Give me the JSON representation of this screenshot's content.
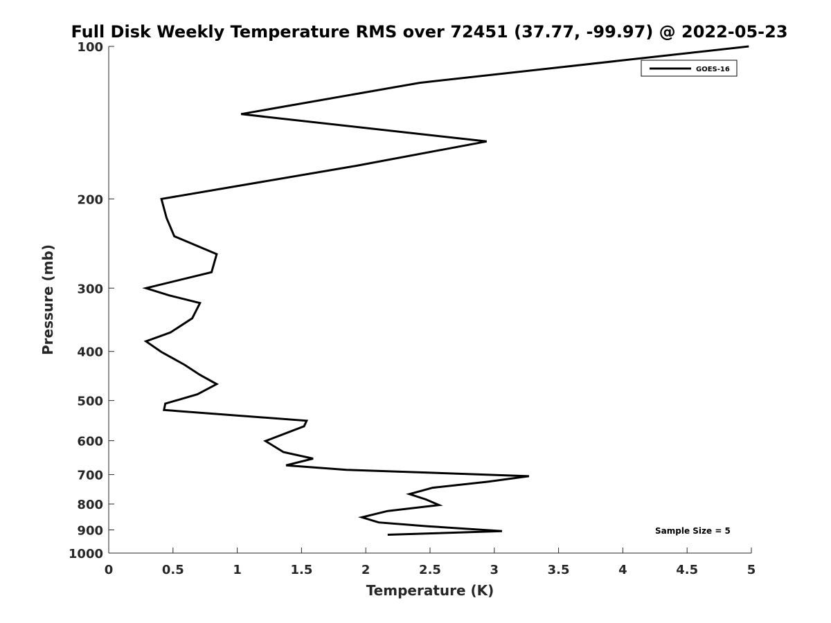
{
  "chart_data": {
    "type": "line",
    "title": "Full Disk Weekly Temperature RMS over 72451 (37.77, -99.97) @ 2022-05-23",
    "xlabel": "Temperature (K)",
    "ylabel": "Pressure (mb)",
    "xlim": [
      0,
      5
    ],
    "ylim": [
      100,
      1000
    ],
    "y_scale": "log",
    "y_reversed": true,
    "x_ticks": [
      "0",
      "0.5",
      "1",
      "1.5",
      "2",
      "2.5",
      "3",
      "3.5",
      "4",
      "4.5",
      "5"
    ],
    "x_tick_values": [
      0,
      0.5,
      1,
      1.5,
      2,
      2.5,
      3,
      3.5,
      4,
      4.5,
      5
    ],
    "y_ticks": [
      "100",
      "200",
      "300",
      "400",
      "500",
      "600",
      "700",
      "800",
      "900",
      "1000"
    ],
    "y_tick_values": [
      100,
      200,
      300,
      400,
      500,
      600,
      700,
      800,
      900,
      1000
    ],
    "grid": false,
    "legend_position": "top-right",
    "annotation": "Sample Size = 5",
    "series": [
      {
        "name": "GOES-16",
        "color": "#000000",
        "points": [
          [
            4.98,
            100
          ],
          [
            2.42,
            118
          ],
          [
            1.03,
            136
          ],
          [
            2.94,
            154
          ],
          [
            1.93,
            172
          ],
          [
            0.41,
            200
          ],
          [
            0.45,
            218
          ],
          [
            0.51,
            237
          ],
          [
            0.84,
            257
          ],
          [
            0.8,
            279
          ],
          [
            0.29,
            300
          ],
          [
            0.47,
            310
          ],
          [
            0.71,
            321
          ],
          [
            0.65,
            344
          ],
          [
            0.48,
            367
          ],
          [
            0.29,
            382
          ],
          [
            0.41,
            401
          ],
          [
            0.59,
            425
          ],
          [
            0.71,
            445
          ],
          [
            0.84,
            464
          ],
          [
            0.69,
            486
          ],
          [
            0.44,
            507
          ],
          [
            0.43,
            522
          ],
          [
            1.54,
            548
          ],
          [
            1.52,
            562
          ],
          [
            1.22,
            601
          ],
          [
            1.36,
            632
          ],
          [
            1.59,
            651
          ],
          [
            1.38,
            671
          ],
          [
            1.85,
            685
          ],
          [
            3.27,
            705
          ],
          [
            2.95,
            723
          ],
          [
            2.52,
            743
          ],
          [
            2.34,
            765
          ],
          [
            2.47,
            784
          ],
          [
            2.57,
            804
          ],
          [
            2.17,
            826
          ],
          [
            1.97,
            850
          ],
          [
            2.1,
            870
          ],
          [
            2.48,
            885
          ],
          [
            3.06,
            905
          ],
          [
            2.17,
            920
          ]
        ]
      }
    ]
  }
}
